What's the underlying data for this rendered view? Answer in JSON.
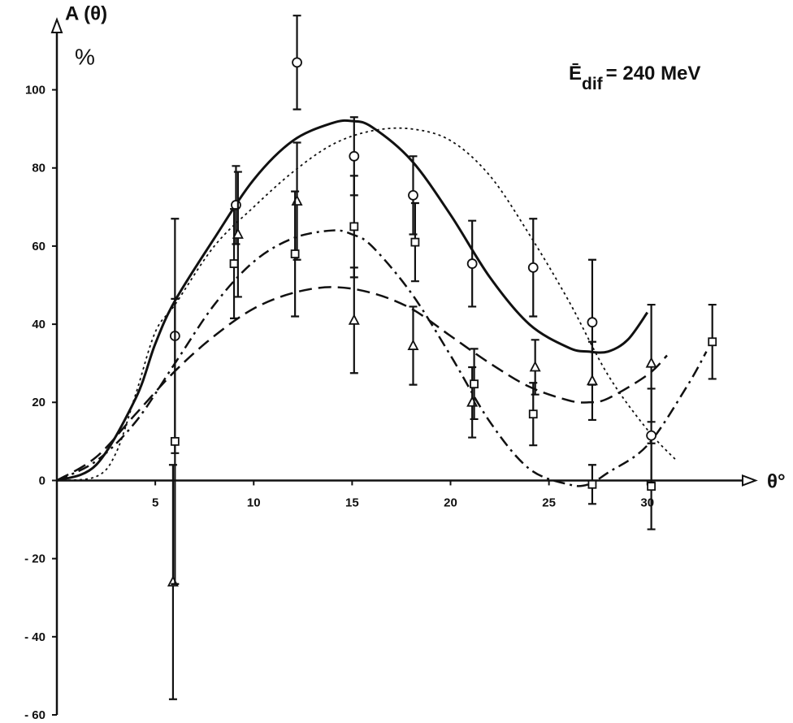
{
  "chart_data": {
    "type": "scatter",
    "y_label": "A (θ)",
    "y_unit": "%",
    "x_label": "θ°",
    "annotation": {
      "main": "Ē",
      "sub": "dif",
      "rest": "= 240 MeV"
    },
    "xlim": [
      0,
      35.5
    ],
    "ylim": [
      -60,
      118
    ],
    "xticks": [
      5,
      10,
      15,
      20,
      25,
      30
    ],
    "yticks": [
      100,
      80,
      60,
      40,
      20,
      0,
      {
        "value": -20,
        "label": "- 20"
      },
      {
        "value": -40,
        "label": "- 40"
      },
      {
        "value": -60,
        "label": "- 60"
      }
    ],
    "color": "#111111",
    "series": [
      {
        "marker": "circle",
        "x": [
          6.0,
          9.1,
          12.2,
          15.1,
          18.1,
          21.1,
          24.2,
          27.2,
          30.2
        ],
        "values": [
          37,
          70.5,
          107,
          83,
          73,
          55.5,
          54.5,
          40.5,
          11.5
        ],
        "errors": [
          30,
          10,
          12,
          10,
          10,
          11,
          12.5,
          16,
          12
        ]
      },
      {
        "marker": "triangle",
        "x": [
          5.9,
          9.2,
          12.2,
          15.1,
          18.1,
          21.1,
          24.3,
          27.2,
          30.2
        ],
        "values": [
          -26,
          63,
          71.5,
          41,
          34.5,
          20,
          29,
          25.5,
          30
        ],
        "errors": [
          30,
          16,
          15,
          13.5,
          10,
          9,
          7,
          10,
          15
        ]
      },
      {
        "marker": "square",
        "x": [
          6.0,
          9.0,
          12.1,
          15.1,
          18.2,
          21.2,
          24.2,
          27.2,
          30.2,
          33.3
        ],
        "values": [
          10,
          55.5,
          58,
          65,
          61,
          24.7,
          17,
          -1,
          -1.5,
          35.5
        ],
        "errors": [
          36.5,
          14,
          16,
          13,
          10,
          9,
          8,
          5,
          11,
          9.5
        ]
      }
    ],
    "curves": [
      {
        "style": "solid",
        "x": [
          0,
          2,
          4,
          5,
          6,
          8,
          10,
          12,
          14,
          15,
          16,
          18,
          20,
          22,
          24,
          26,
          27,
          28,
          29,
          30
        ],
        "values": [
          0,
          4,
          21,
          35,
          46,
          62,
          77,
          87,
          91.5,
          92,
          90.5,
          82,
          68,
          52,
          40,
          34,
          33,
          33,
          36,
          43
        ]
      },
      {
        "style": "dotted",
        "x": [
          0,
          2,
          3,
          4,
          5,
          6,
          8,
          10,
          12,
          14,
          16,
          18,
          20,
          22,
          24,
          26,
          28,
          30,
          31.5
        ],
        "values": [
          0,
          1,
          7,
          22,
          38,
          45,
          60,
          70,
          79,
          86,
          89.5,
          90,
          87,
          78,
          63,
          46,
          27,
          13,
          5
        ]
      },
      {
        "style": "dash-dot",
        "x": [
          0,
          2,
          4,
          6,
          8,
          10,
          12,
          14,
          15,
          16,
          18,
          20,
          22,
          24,
          26,
          27,
          28,
          30,
          32,
          33
        ],
        "values": [
          0,
          5,
          15,
          30,
          45,
          56,
          62,
          64,
          63,
          60,
          48,
          32,
          15,
          3,
          -1,
          -1,
          2,
          9,
          24,
          33
        ]
      },
      {
        "style": "dashed",
        "x": [
          0,
          2,
          4,
          6,
          8,
          10,
          12,
          14,
          16,
          18,
          20,
          22,
          24,
          26,
          27,
          28,
          30,
          31
        ],
        "values": [
          0,
          6,
          17,
          28,
          37,
          44,
          48,
          49.5,
          48,
          44,
          37,
          30,
          24,
          20.5,
          20,
          21,
          27,
          32
        ]
      }
    ]
  }
}
